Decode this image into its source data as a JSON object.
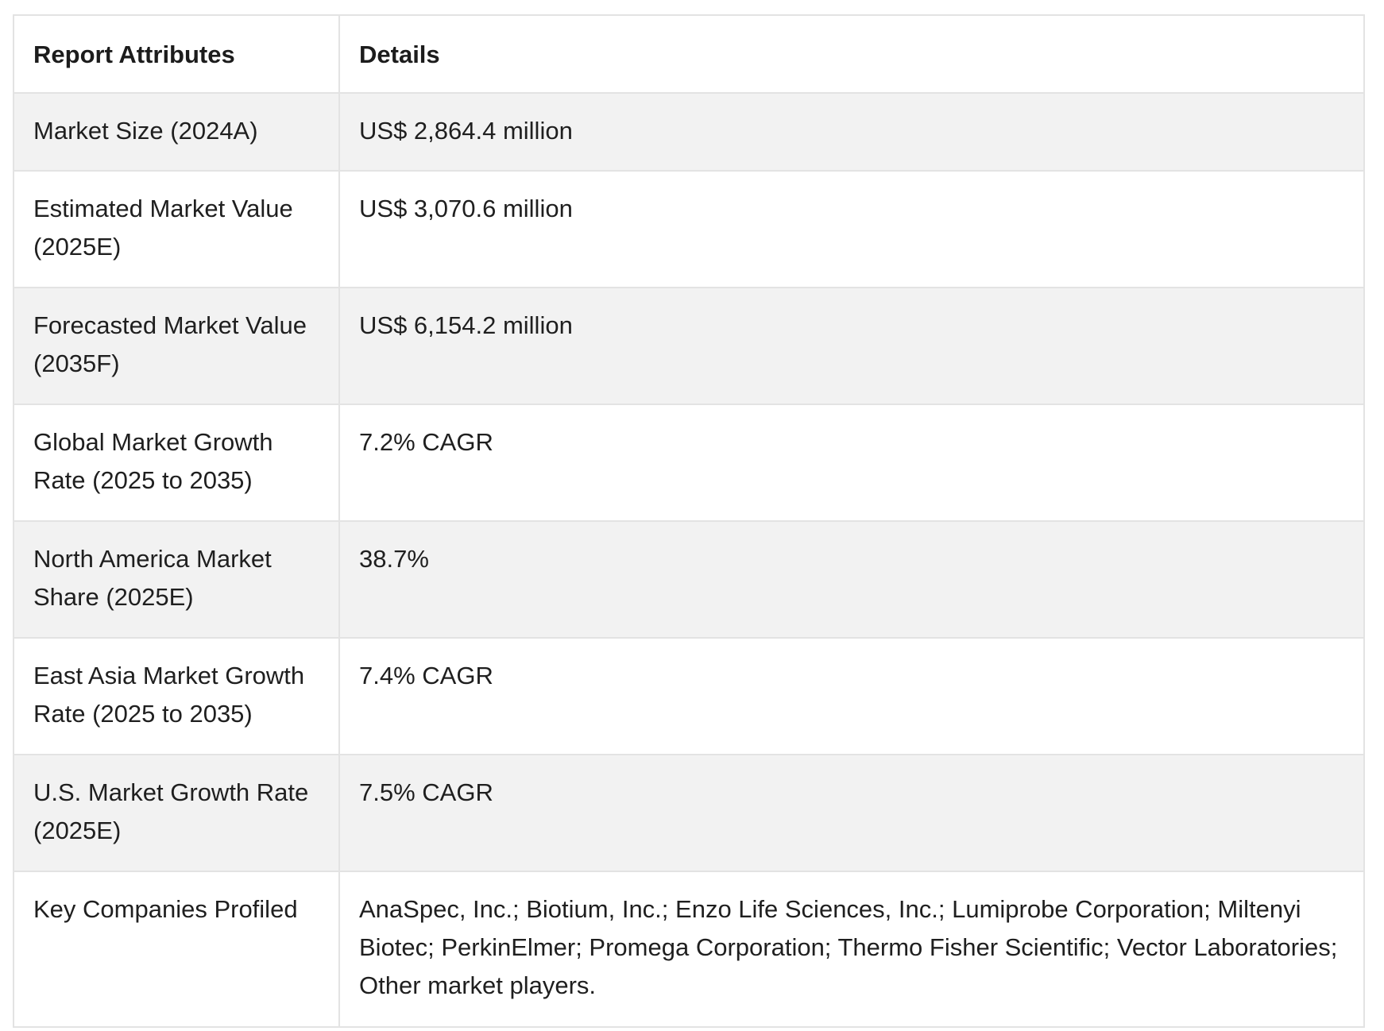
{
  "table": {
    "headers": [
      "Report Attributes",
      "Details"
    ],
    "rows": [
      {
        "attribute": "Market Size (2024A)",
        "detail": "US$ 2,864.4 million"
      },
      {
        "attribute": "Estimated Market Value (2025E)",
        "detail": "US$ 3,070.6 million"
      },
      {
        "attribute": "Forecasted Market Value (2035F)",
        "detail": "US$ 6,154.2 million"
      },
      {
        "attribute": "Global Market Growth Rate (2025 to 2035)",
        "detail": "7.2% CAGR"
      },
      {
        "attribute": "North America Market Share (2025E)",
        "detail": "38.7%"
      },
      {
        "attribute": "East Asia Market Growth Rate (2025 to 2035)",
        "detail": "7.4% CAGR"
      },
      {
        "attribute": "U.S. Market Growth Rate (2025E)",
        "detail": "7.5% CAGR"
      },
      {
        "attribute": "Key Companies Profiled",
        "detail": "AnaSpec, Inc.; Biotium, Inc.; Enzo Life Sciences, Inc.; Lumiprobe Corporation; Miltenyi Biotec; PerkinElmer; Promega Corporation; Thermo Fisher Scientific; Vector Laboratories; Other market players."
      }
    ]
  }
}
